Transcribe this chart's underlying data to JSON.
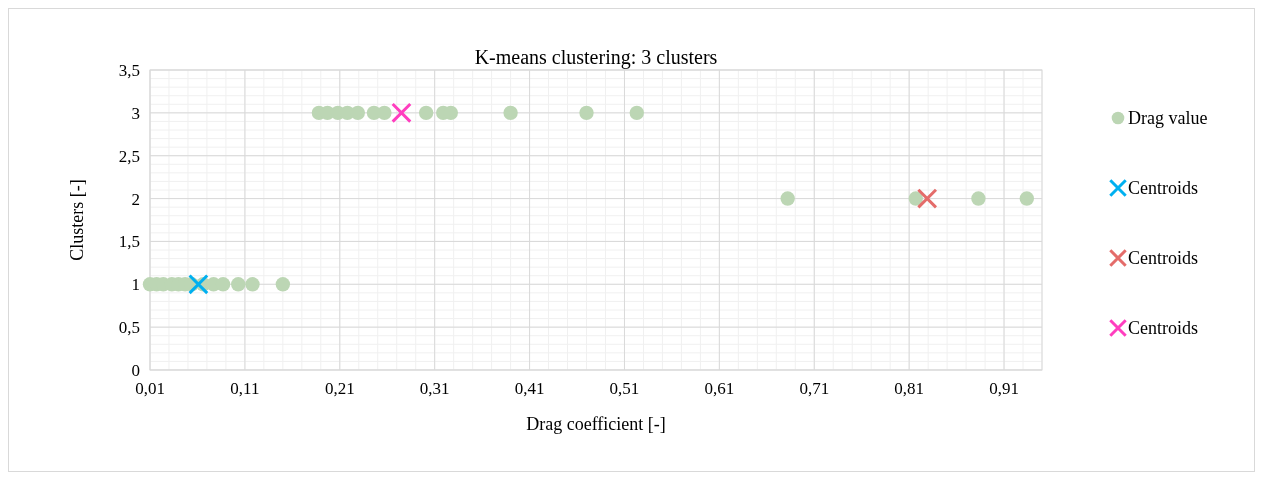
{
  "chart_data": {
    "type": "scatter",
    "title": "K-means clustering: 3 clusters",
    "xlabel": "Drag coefficient [-]",
    "ylabel": "Clusters [-]",
    "xlim": [
      0.01,
      0.95
    ],
    "xticks": [
      {
        "value": 0.01,
        "label": "0,01"
      },
      {
        "value": 0.11,
        "label": "0,11"
      },
      {
        "value": 0.21,
        "label": "0,21"
      },
      {
        "value": 0.31,
        "label": "0,31"
      },
      {
        "value": 0.41,
        "label": "0,41"
      },
      {
        "value": 0.51,
        "label": "0,51"
      },
      {
        "value": 0.61,
        "label": "0,61"
      },
      {
        "value": 0.71,
        "label": "0,71"
      },
      {
        "value": 0.81,
        "label": "0,81"
      },
      {
        "value": 0.91,
        "label": "0,91"
      }
    ],
    "ylim": [
      0,
      3.5
    ],
    "yticks": [
      0,
      {
        "value": 0.5,
        "label": "0,5"
      },
      1,
      {
        "value": 1.5,
        "label": "1,5"
      },
      2,
      {
        "value": 2.5,
        "label": "2,5"
      },
      3,
      {
        "value": 3.5,
        "label": "3,5"
      }
    ],
    "grid": true,
    "legend": "right",
    "series": [
      {
        "name": "Drag value",
        "color": "#bcd6b4",
        "marker": "circle",
        "x": [
          0.01,
          0.017,
          0.024,
          0.033,
          0.04,
          0.047,
          0.054,
          0.066,
          0.077,
          0.087,
          0.103,
          0.118,
          0.15,
          0.188,
          0.197,
          0.208,
          0.218,
          0.229,
          0.246,
          0.257,
          0.301,
          0.319,
          0.327,
          0.39,
          0.47,
          0.523,
          0.682,
          0.817,
          0.883,
          0.934
        ],
        "values": [
          1,
          1,
          1,
          1,
          1,
          1,
          1,
          1,
          1,
          1,
          1,
          1,
          1,
          3,
          3,
          3,
          3,
          3,
          3,
          3,
          3,
          3,
          3,
          3,
          3,
          3,
          2,
          2,
          2,
          2
        ]
      },
      {
        "name": "Centroids",
        "color": "#00b0f0",
        "marker": "cross",
        "x": [
          0.061
        ],
        "values": [
          1
        ]
      },
      {
        "name": "Centroids",
        "color": "#e46c6a",
        "marker": "cross",
        "x": [
          0.829
        ],
        "values": [
          2
        ]
      },
      {
        "name": "Centroids",
        "color": "#ff3ebf",
        "marker": "cross",
        "x": [
          0.275
        ],
        "values": [
          3
        ]
      }
    ]
  }
}
